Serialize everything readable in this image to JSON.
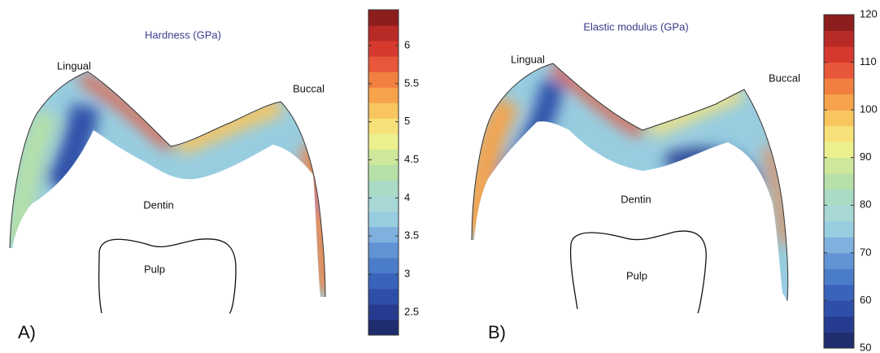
{
  "panels": [
    {
      "label": "A)",
      "title": "Hardness (GPa)",
      "regions": [
        "Lingual",
        "Buccal",
        "Dentin",
        "Pulp"
      ],
      "colorbar": {
        "lim": [
          2.2,
          6.47
        ],
        "ticks": [
          2.5,
          3,
          3.5,
          4,
          4.5,
          5,
          5.5,
          6
        ],
        "colors": [
          "#1f2d6e",
          "#263b8f",
          "#2e4fa8",
          "#3a63bb",
          "#4b7cc9",
          "#6193d4",
          "#7fb0de",
          "#98cde0",
          "#a7d8d6",
          "#a9dbc5",
          "#b6e0a8",
          "#cde89a",
          "#ecf08e",
          "#f7e27a",
          "#f9c55e",
          "#f6a34b",
          "#f18040",
          "#e8573a",
          "#d63a2f",
          "#b82a26",
          "#8e1d1d"
        ]
      }
    },
    {
      "label": "B)",
      "title": "Elastic modulus (GPa)",
      "regions": [
        "Lingual",
        "Buccal",
        "Dentin",
        "Pulp"
      ],
      "colorbar": {
        "lim": [
          50,
          120
        ],
        "ticks": [
          50,
          60,
          70,
          80,
          90,
          100,
          110,
          120
        ],
        "colors": [
          "#1f2d6e",
          "#263b8f",
          "#2e4fa8",
          "#3a63bb",
          "#4b7cc9",
          "#6193d4",
          "#7fb0de",
          "#98cde0",
          "#a7d8d6",
          "#a9dbc5",
          "#b6e0a8",
          "#cde89a",
          "#ecf08e",
          "#f7e27a",
          "#f9c55e",
          "#f6a34b",
          "#f18040",
          "#e8573a",
          "#d63a2f",
          "#b82a26",
          "#8e1d1d"
        ]
      }
    }
  ]
}
